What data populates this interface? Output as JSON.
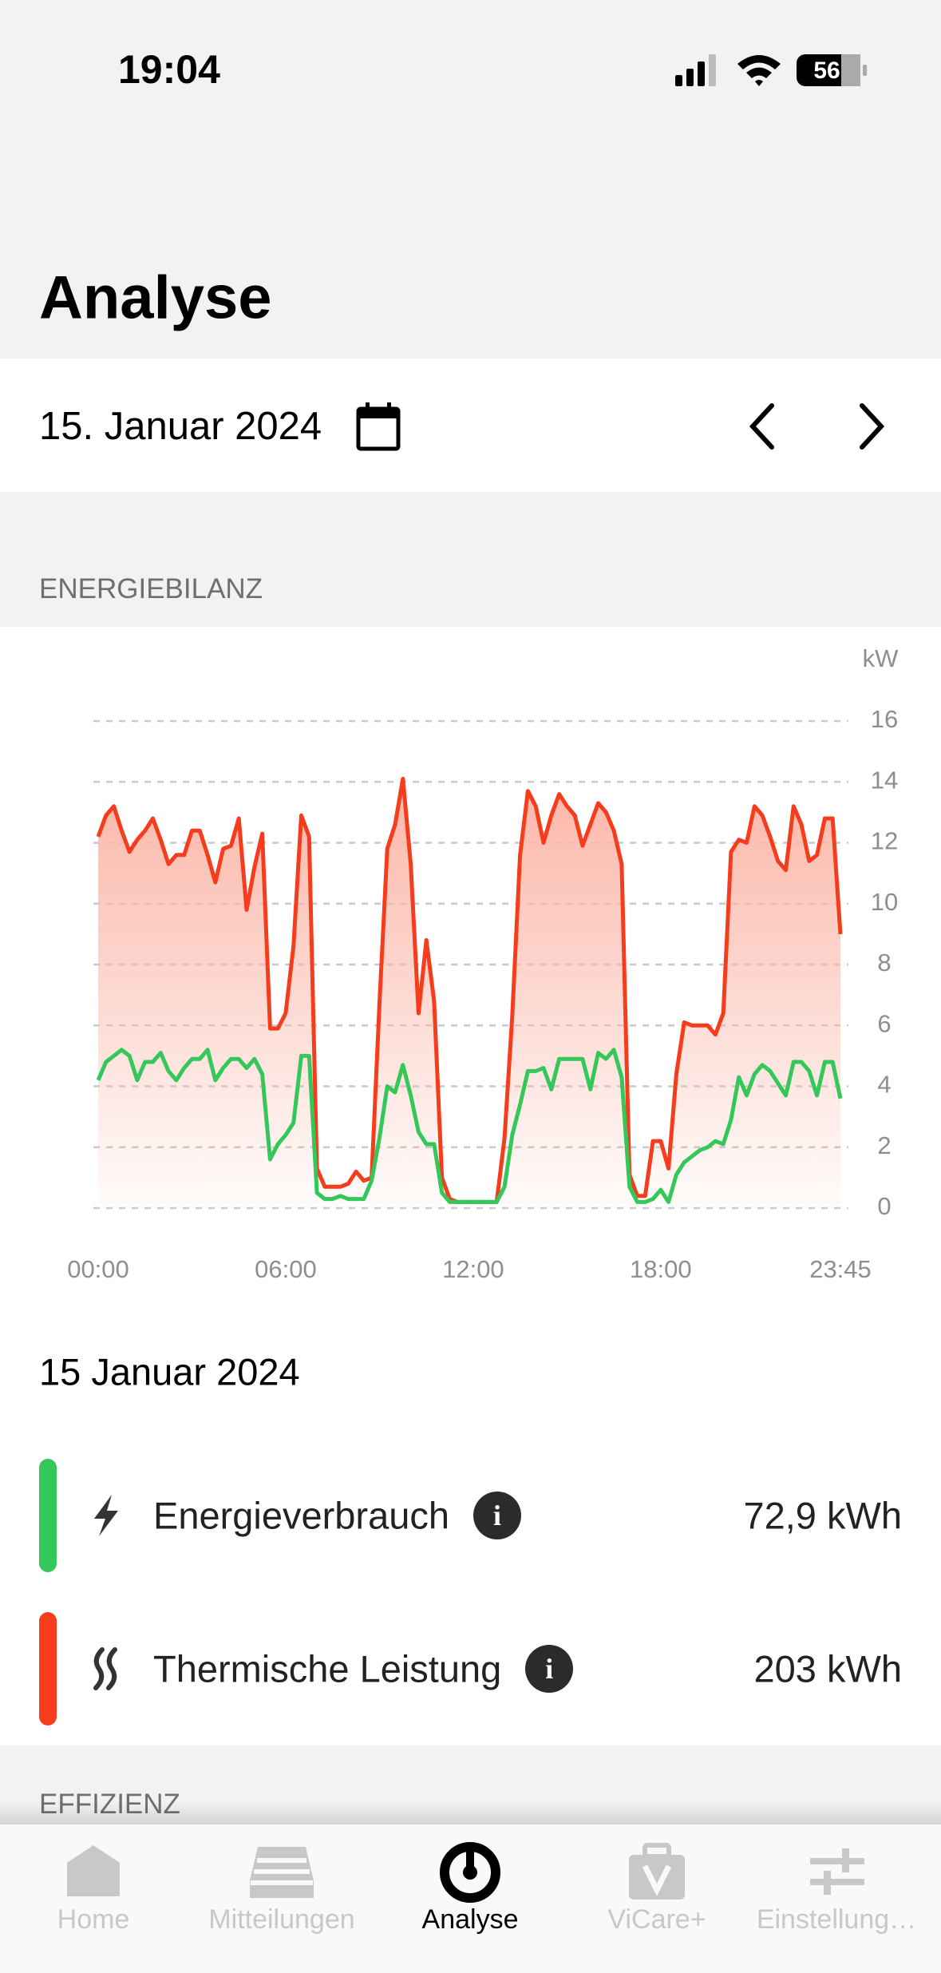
{
  "status_bar": {
    "time": "19:04",
    "battery": "56"
  },
  "header": {
    "title": "Analyse"
  },
  "date_bar": {
    "date": "15. Januar 2024"
  },
  "section_energy": "ENERGIEBILANZ",
  "chart_data": {
    "type": "line",
    "y_unit": "kW",
    "x": [
      "00:00",
      "00:15",
      "00:30",
      "00:45",
      "01:00",
      "01:15",
      "01:30",
      "01:45",
      "02:00",
      "02:15",
      "02:30",
      "02:45",
      "03:00",
      "03:15",
      "03:30",
      "03:45",
      "04:00",
      "04:15",
      "04:30",
      "04:45",
      "05:00",
      "05:15",
      "05:30",
      "05:45",
      "06:00",
      "06:15",
      "06:30",
      "06:45",
      "07:00",
      "07:15",
      "07:30",
      "07:45",
      "08:00",
      "08:15",
      "08:30",
      "08:45",
      "09:00",
      "09:15",
      "09:30",
      "09:45",
      "10:00",
      "10:15",
      "10:30",
      "10:45",
      "11:00",
      "11:15",
      "11:30",
      "11:45",
      "12:00",
      "12:15",
      "12:30",
      "12:45",
      "13:00",
      "13:15",
      "13:30",
      "13:45",
      "14:00",
      "14:15",
      "14:30",
      "14:45",
      "15:00",
      "15:15",
      "15:30",
      "15:45",
      "16:00",
      "16:15",
      "16:30",
      "16:45",
      "17:00",
      "17:15",
      "17:30",
      "17:45",
      "18:00",
      "18:15",
      "18:30",
      "18:45",
      "19:00",
      "19:15",
      "19:30",
      "19:45",
      "20:00",
      "20:15",
      "20:30",
      "20:45",
      "21:00",
      "21:15",
      "21:30",
      "21:45",
      "22:00",
      "22:15",
      "22:30",
      "22:45",
      "23:00",
      "23:15",
      "23:30",
      "23:45"
    ],
    "xticks": [
      "00:00",
      "06:00",
      "12:00",
      "18:00",
      "23:45"
    ],
    "ylim": [
      0,
      16
    ],
    "yticks": [
      0,
      2,
      4,
      6,
      8,
      10,
      12,
      14,
      16
    ],
    "grid": true,
    "series": [
      {
        "name": "Thermische Leistung",
        "color": "#f53d1e",
        "area": true,
        "values": [
          12.2,
          12.9,
          13.2,
          12.4,
          11.7,
          12.1,
          12.4,
          12.8,
          12.1,
          11.3,
          11.6,
          11.6,
          12.4,
          12.4,
          11.6,
          10.7,
          11.8,
          11.9,
          12.8,
          9.8,
          11.2,
          12.3,
          5.9,
          5.9,
          6.4,
          8.6,
          12.9,
          12.2,
          1.3,
          0.7,
          0.7,
          0.7,
          0.8,
          1.2,
          0.9,
          1.0,
          6.7,
          11.8,
          12.6,
          14.1,
          11.3,
          6.4,
          8.8,
          6.8,
          1.0,
          0.3,
          0.2,
          0.2,
          0.2,
          0.2,
          0.2,
          0.2,
          2.3,
          6.3,
          11.6,
          13.7,
          13.2,
          12.0,
          12.9,
          13.6,
          13.2,
          12.9,
          11.9,
          12.6,
          13.3,
          13.0,
          12.4,
          11.3,
          1.1,
          0.4,
          0.4,
          2.2,
          2.2,
          1.3,
          4.4,
          6.1,
          6.0,
          6.0,
          6.0,
          5.7,
          6.4,
          11.7,
          12.1,
          12.0,
          13.2,
          12.9,
          12.2,
          11.4,
          11.1,
          13.2,
          12.6,
          11.4,
          11.6,
          12.8,
          12.8,
          9.0
        ]
      },
      {
        "name": "Energieverbrauch",
        "color": "#34c759",
        "area": false,
        "values": [
          4.2,
          4.8,
          5.0,
          5.2,
          5.0,
          4.2,
          4.8,
          4.8,
          5.1,
          4.5,
          4.2,
          4.6,
          4.9,
          4.9,
          5.2,
          4.2,
          4.6,
          4.9,
          4.9,
          4.6,
          4.9,
          4.4,
          1.6,
          2.1,
          2.4,
          2.8,
          5.0,
          5.0,
          0.5,
          0.3,
          0.3,
          0.4,
          0.3,
          0.3,
          0.3,
          0.9,
          2.3,
          4.0,
          3.8,
          4.7,
          3.7,
          2.5,
          2.1,
          2.1,
          0.5,
          0.2,
          0.2,
          0.2,
          0.2,
          0.2,
          0.2,
          0.2,
          0.7,
          2.4,
          3.4,
          4.5,
          4.5,
          4.6,
          3.9,
          4.9,
          4.9,
          4.9,
          4.9,
          3.9,
          5.1,
          4.9,
          5.2,
          4.3,
          0.7,
          0.2,
          0.2,
          0.3,
          0.6,
          0.2,
          1.1,
          1.5,
          1.7,
          1.9,
          2.0,
          2.2,
          2.1,
          2.9,
          4.3,
          3.7,
          4.4,
          4.7,
          4.5,
          4.1,
          3.7,
          4.8,
          4.8,
          4.5,
          3.7,
          4.8,
          4.8,
          3.6
        ]
      }
    ]
  },
  "summary": {
    "date": "15 Januar 2024",
    "items": [
      {
        "label": "Energieverbrauch",
        "value": "72,9 kWh",
        "color": "#34c759"
      },
      {
        "label": "Thermische Leistung",
        "value": "203 kWh",
        "color": "#f53d1e"
      }
    ]
  },
  "section_efficiency": "EFFIZIENZ",
  "tabs": {
    "labels": [
      "Home",
      "Mitteilungen",
      "Analyse",
      "ViCare+",
      "Einstellung…"
    ],
    "active": 2
  }
}
